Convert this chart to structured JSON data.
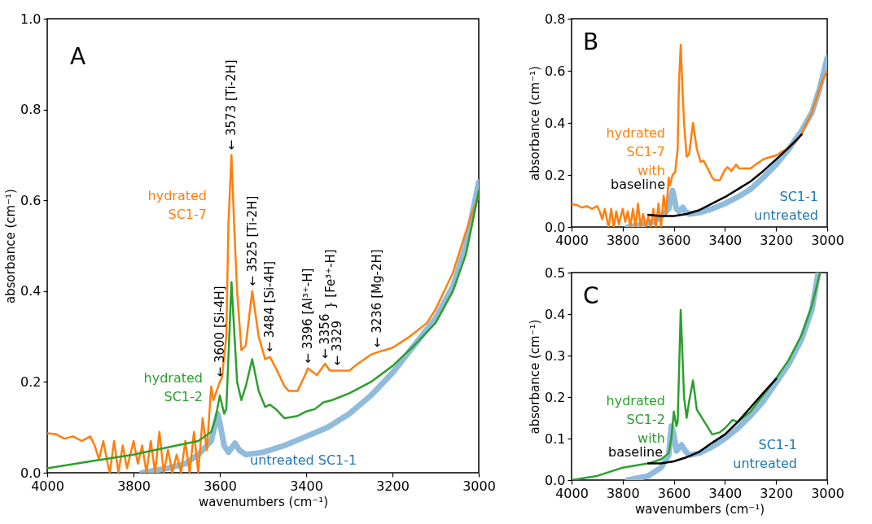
{
  "chart_data": [
    {
      "type": "line",
      "xlabel": "wavenumbers (cm⁻¹)",
      "ylabel": "absorbance (cm⁻¹)",
      "xlim": [
        4000,
        3000
      ],
      "xticks": [
        4000,
        3800,
        3600,
        3400,
        3200,
        3000
      ],
      "ylim": [
        0,
        1.0
      ],
      "yticks": [
        {
          "value": 0,
          "label": "0.0"
        },
        {
          "value": 0.2,
          "label": "0.2"
        },
        {
          "value": 0.4,
          "label": "0.4"
        },
        {
          "value": 0.6,
          "label": "0.6"
        },
        {
          "value": 0.8,
          "label": "0.8"
        },
        {
          "value": 1.0,
          "label": "1.0"
        }
      ],
      "annotations": [
        "A",
        "} [Fe³⁺-H]",
        {
          "text": "← 3600 [Si-4H]",
          "x": 3600,
          "y": 0.2
        },
        {
          "text": "← 3573 [Ti-2H]",
          "x": 3573,
          "y": 0.7
        },
        {
          "text": "← 3525 [Ti-2H]",
          "x": 3525,
          "y": 0.4
        },
        {
          "text": "← 3484 [Si-4H]",
          "x": 3484,
          "y": 0.255
        },
        {
          "text": "← 3396 [Al³⁺-H]",
          "x": 3396,
          "y": 0.23
        },
        {
          "text": "← 3356",
          "x": 3356,
          "y": 0.24
        },
        {
          "text": "← 3329",
          "x": 3329,
          "y": 0.225
        },
        {
          "text": "← 3236 [Mg-2H]",
          "x": 3236,
          "y": 0.265
        }
      ],
      "series": [
        {
          "name": "untreated SC1-1",
          "color": "#8fbcdc",
          "x": [
            3780,
            3720,
            3680,
            3650,
            3620,
            3605,
            3600,
            3590,
            3580,
            3565,
            3555,
            3540,
            3500,
            3450,
            3400,
            3350,
            3300,
            3250,
            3200,
            3150,
            3100,
            3060,
            3030,
            3000
          ],
          "values": [
            0.0,
            0.01,
            0.02,
            0.04,
            0.07,
            0.13,
            0.11,
            0.06,
            0.045,
            0.065,
            0.05,
            0.04,
            0.045,
            0.06,
            0.08,
            0.1,
            0.13,
            0.17,
            0.22,
            0.28,
            0.34,
            0.41,
            0.5,
            0.64
          ]
        },
        {
          "name": "hydrated SC1-7",
          "color": "#ff7f0e",
          "x": [
            4000,
            3980,
            3960,
            3940,
            3920,
            3900,
            3890,
            3880,
            3870,
            3860,
            3855,
            3845,
            3835,
            3825,
            3815,
            3800,
            3790,
            3780,
            3770,
            3760,
            3750,
            3740,
            3730,
            3720,
            3710,
            3700,
            3690,
            3680,
            3670,
            3660,
            3650,
            3640,
            3630,
            3620,
            3615,
            3600,
            3595,
            3585,
            3580,
            3573,
            3567,
            3560,
            3550,
            3540,
            3525,
            3510,
            3495,
            3484,
            3470,
            3450,
            3440,
            3420,
            3400,
            3396,
            3375,
            3356,
            3345,
            3329,
            3300,
            3280,
            3250,
            3236,
            3200,
            3160,
            3120,
            3100,
            3080,
            3060,
            3040,
            3020,
            3000
          ],
          "values": [
            0.087,
            0.085,
            0.075,
            0.08,
            0.07,
            0.08,
            0.06,
            0.03,
            0.07,
            0.02,
            0.0,
            0.07,
            0.0,
            0.06,
            0.01,
            0.07,
            0.02,
            0.06,
            0.0,
            0.07,
            0.0,
            0.09,
            0.0,
            0.05,
            0.0,
            0.04,
            0.0,
            0.07,
            0.0,
            0.09,
            0.0,
            0.12,
            0.05,
            0.19,
            0.16,
            0.2,
            0.21,
            0.3,
            0.55,
            0.7,
            0.55,
            0.4,
            0.27,
            0.28,
            0.4,
            0.3,
            0.25,
            0.255,
            0.23,
            0.19,
            0.18,
            0.18,
            0.22,
            0.23,
            0.215,
            0.24,
            0.225,
            0.225,
            0.225,
            0.24,
            0.26,
            0.265,
            0.275,
            0.3,
            0.33,
            0.36,
            0.4,
            0.44,
            0.5,
            0.56,
            0.61
          ]
        },
        {
          "name": "hydrated SC1-2",
          "color": "#2ca02c",
          "x": [
            4000,
            3900,
            3800,
            3700,
            3650,
            3620,
            3610,
            3600,
            3590,
            3585,
            3573,
            3560,
            3550,
            3540,
            3525,
            3510,
            3495,
            3484,
            3470,
            3450,
            3420,
            3400,
            3380,
            3360,
            3340,
            3300,
            3250,
            3200,
            3150,
            3100,
            3060,
            3030,
            3000
          ],
          "values": [
            0.01,
            0.025,
            0.04,
            0.06,
            0.07,
            0.09,
            0.12,
            0.17,
            0.13,
            0.14,
            0.42,
            0.2,
            0.16,
            0.19,
            0.25,
            0.18,
            0.145,
            0.15,
            0.14,
            0.12,
            0.125,
            0.135,
            0.14,
            0.155,
            0.16,
            0.175,
            0.2,
            0.235,
            0.28,
            0.33,
            0.4,
            0.48,
            0.62
          ]
        }
      ]
    },
    {
      "type": "line",
      "ylabel": "absorbance (cm⁻¹)",
      "xlim": [
        4000,
        3000
      ],
      "xticks": [
        4000,
        3800,
        3600,
        3400,
        3200,
        3000
      ],
      "ylim": [
        0,
        0.8
      ],
      "yticks": [
        {
          "value": 0,
          "label": "0.0"
        },
        {
          "value": 0.2,
          "label": "0.2"
        },
        {
          "value": 0.4,
          "label": "0.4"
        },
        {
          "value": 0.6,
          "label": "0.6"
        },
        {
          "value": 0.8,
          "label": "0.8"
        }
      ],
      "annotations": [
        "B"
      ],
      "series": [
        {
          "name": "SC1-1 untreated",
          "color": "#8fbcdc",
          "x": [
            3780,
            3720,
            3680,
            3650,
            3620,
            3605,
            3600,
            3590,
            3580,
            3565,
            3555,
            3540,
            3500,
            3450,
            3400,
            3350,
            3300,
            3250,
            3200,
            3150,
            3100,
            3060,
            3030,
            3000
          ],
          "values": [
            0.0,
            0.01,
            0.02,
            0.04,
            0.07,
            0.14,
            0.12,
            0.07,
            0.06,
            0.075,
            0.06,
            0.05,
            0.055,
            0.07,
            0.09,
            0.115,
            0.145,
            0.19,
            0.24,
            0.3,
            0.37,
            0.44,
            0.53,
            0.65
          ]
        },
        {
          "name": "hydrated SC1-7 with",
          "color": "#ff7f0e",
          "x": [
            4000,
            3980,
            3960,
            3940,
            3920,
            3900,
            3890,
            3880,
            3870,
            3860,
            3855,
            3845,
            3835,
            3825,
            3815,
            3800,
            3790,
            3780,
            3770,
            3760,
            3750,
            3740,
            3730,
            3720,
            3710,
            3700,
            3690,
            3680,
            3670,
            3660,
            3650,
            3640,
            3630,
            3620,
            3615,
            3605,
            3595,
            3585,
            3580,
            3573,
            3567,
            3560,
            3550,
            3540,
            3525,
            3510,
            3495,
            3484,
            3470,
            3450,
            3440,
            3420,
            3400,
            3390,
            3375,
            3356,
            3345,
            3320,
            3300,
            3280,
            3250,
            3236,
            3200,
            3160,
            3120,
            3100,
            3080,
            3060,
            3040,
            3020,
            3000
          ],
          "values": [
            0.087,
            0.085,
            0.075,
            0.08,
            0.07,
            0.08,
            0.06,
            0.03,
            0.07,
            0.02,
            0.0,
            0.07,
            0.0,
            0.06,
            0.01,
            0.07,
            0.02,
            0.06,
            0.0,
            0.07,
            0.0,
            0.09,
            0.0,
            0.05,
            0.0,
            0.04,
            0.0,
            0.07,
            0.0,
            0.09,
            0.0,
            0.12,
            0.05,
            0.19,
            0.16,
            0.2,
            0.21,
            0.3,
            0.55,
            0.7,
            0.55,
            0.4,
            0.27,
            0.28,
            0.4,
            0.3,
            0.25,
            0.255,
            0.23,
            0.19,
            0.18,
            0.18,
            0.22,
            0.23,
            0.215,
            0.24,
            0.225,
            0.225,
            0.225,
            0.24,
            0.26,
            0.265,
            0.275,
            0.3,
            0.33,
            0.36,
            0.4,
            0.44,
            0.5,
            0.56,
            0.6
          ]
        },
        {
          "name": "baseline",
          "color": "#000000",
          "x": [
            3700,
            3650,
            3600,
            3550,
            3500,
            3450,
            3400,
            3350,
            3300,
            3250,
            3200,
            3150,
            3100
          ],
          "values": [
            0.047,
            0.042,
            0.042,
            0.05,
            0.065,
            0.09,
            0.115,
            0.145,
            0.175,
            0.215,
            0.26,
            0.305,
            0.355
          ]
        }
      ]
    },
    {
      "type": "line",
      "xlabel": "wavenumbers (cm⁻¹)",
      "ylabel": "absorbance (cm⁻¹)",
      "xlim": [
        4000,
        3000
      ],
      "xticks": [
        4000,
        3800,
        3600,
        3400,
        3200,
        3000
      ],
      "ylim": [
        0,
        0.5
      ],
      "yticks": [
        {
          "value": 0,
          "label": "0.0"
        },
        0.1,
        0.2,
        0.3,
        0.4,
        0.5
      ],
      "annotations": [
        "C"
      ],
      "series": [
        {
          "name": "SC1-1 untreated",
          "color": "#8fbcdc",
          "x": [
            3780,
            3700,
            3650,
            3620,
            3610,
            3600,
            3590,
            3570,
            3555,
            3540,
            3500,
            3450,
            3400,
            3350,
            3300,
            3250,
            3200,
            3150,
            3100,
            3060,
            3035
          ],
          "values": [
            0.0,
            0.01,
            0.03,
            0.06,
            0.13,
            0.11,
            0.07,
            0.085,
            0.07,
            0.06,
            0.065,
            0.08,
            0.1,
            0.125,
            0.155,
            0.19,
            0.235,
            0.28,
            0.34,
            0.41,
            0.5
          ]
        },
        {
          "name": "hydrated SC1-2 with",
          "color": "#2ca02c",
          "x": [
            4000,
            3900,
            3800,
            3700,
            3650,
            3620,
            3610,
            3600,
            3590,
            3585,
            3573,
            3560,
            3550,
            3540,
            3525,
            3510,
            3485,
            3470,
            3450,
            3420,
            3400,
            3370,
            3350,
            3300,
            3250,
            3200,
            3150,
            3100,
            3060,
            3028
          ],
          "values": [
            0.0,
            0.01,
            0.03,
            0.04,
            0.05,
            0.065,
            0.1,
            0.165,
            0.13,
            0.14,
            0.41,
            0.2,
            0.15,
            0.19,
            0.24,
            0.17,
            0.145,
            0.13,
            0.11,
            0.115,
            0.125,
            0.145,
            0.14,
            0.165,
            0.205,
            0.245,
            0.29,
            0.35,
            0.42,
            0.5
          ]
        },
        {
          "name": "baseline",
          "color": "#000000",
          "x": [
            3700,
            3650,
            3600,
            3550,
            3500,
            3450,
            3400,
            3350,
            3300,
            3250,
            3200
          ],
          "values": [
            0.04,
            0.04,
            0.045,
            0.055,
            0.068,
            0.09,
            0.11,
            0.14,
            0.175,
            0.21,
            0.244
          ]
        }
      ]
    }
  ]
}
